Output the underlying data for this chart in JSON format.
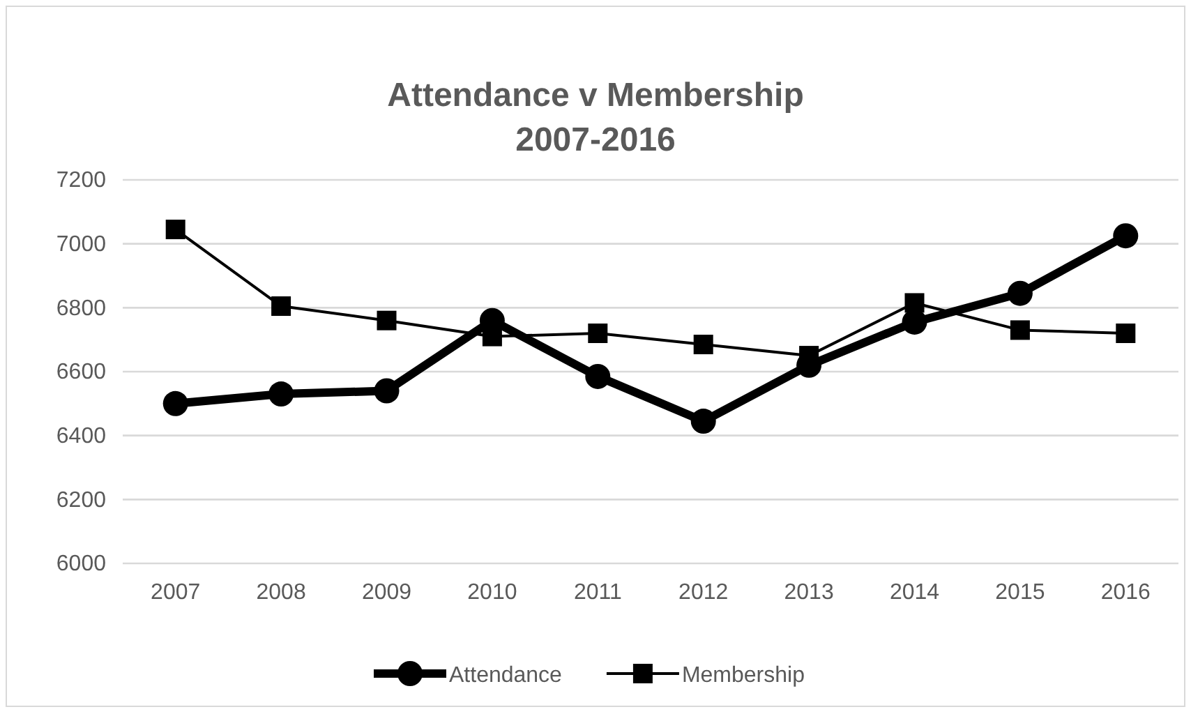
{
  "chart_data": {
    "type": "line",
    "title": "Attendance v Membership",
    "subtitle": "2007-2016",
    "categories": [
      "2007",
      "2008",
      "2009",
      "2010",
      "2011",
      "2012",
      "2013",
      "2014",
      "2015",
      "2016"
    ],
    "series": [
      {
        "name": "Attendance",
        "color": "#000000",
        "marker": "circle",
        "values": [
          6500,
          6530,
          6540,
          6760,
          6585,
          6445,
          6620,
          6755,
          6845,
          7025
        ]
      },
      {
        "name": "Membership",
        "color": "#000000",
        "marker": "square",
        "values": [
          7045,
          6805,
          6760,
          6710,
          6720,
          6685,
          6650,
          6815,
          6730,
          6720
        ]
      }
    ],
    "ylim": [
      6000,
      7200
    ],
    "yticks": [
      6000,
      6200,
      6400,
      6600,
      6800,
      7000,
      7200
    ],
    "grid": "y",
    "legend": "bottom",
    "line_style": "solid"
  }
}
